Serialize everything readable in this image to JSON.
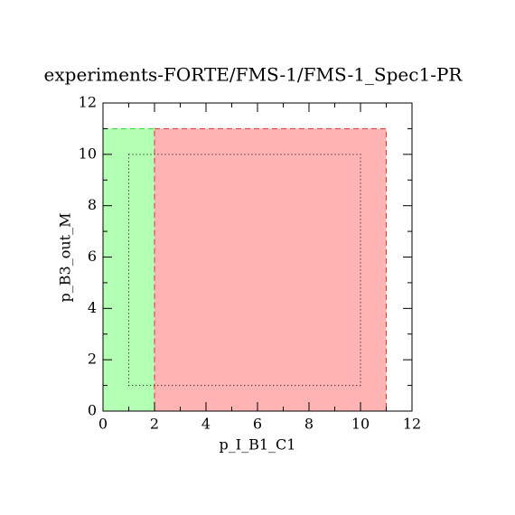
{
  "chart_data": {
    "type": "region",
    "title": "experiments-FORTE/FMS-1/FMS-1_Spec1-PR",
    "xlabel": "p_I_B1_C1",
    "ylabel": "p_B3_out_M",
    "xlim": [
      0,
      12
    ],
    "ylim": [
      0,
      12
    ],
    "xticks": [
      0,
      2,
      4,
      6,
      8,
      10,
      12
    ],
    "yticks": [
      0,
      2,
      4,
      6,
      8,
      10,
      12
    ],
    "xminorticks": [
      1,
      3,
      5,
      7,
      9,
      11
    ],
    "yminorticks": [
      1,
      3,
      5,
      7,
      9,
      11
    ],
    "regions": [
      {
        "x": [
          0,
          2
        ],
        "y": [
          0,
          11
        ],
        "fill": "#b3ffb3",
        "edge": "#22dd22",
        "style": "dashed"
      },
      {
        "x": [
          2,
          11
        ],
        "y": [
          0,
          11
        ],
        "fill": "#ffb3b3",
        "edge": "#dd3333",
        "style": "dashed"
      },
      {
        "x": [
          1,
          10
        ],
        "y": [
          1,
          10
        ],
        "fill": "none",
        "edge": "#000000",
        "style": "dotted"
      }
    ]
  }
}
